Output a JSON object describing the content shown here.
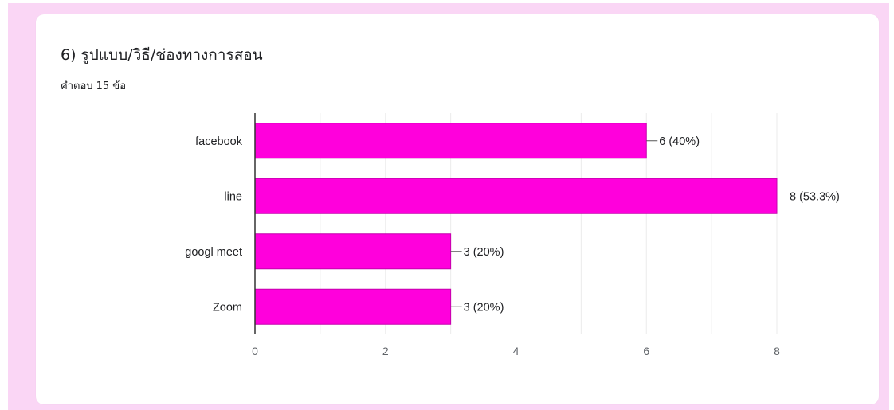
{
  "question": {
    "title": "6) รูปแบบ/วิธี/ช่องทางการสอน",
    "response_count": "คำตอบ 15 ข้อ"
  },
  "colors": {
    "backdrop": "#fad6f5",
    "bar": "#ff00dc",
    "bar_stroke": "#c600ad",
    "grid": "#ebebeb",
    "axis": "#333333"
  },
  "chart_data": {
    "type": "bar",
    "orientation": "horizontal",
    "categories": [
      "facebook",
      "line",
      "googl meet",
      "Zoom"
    ],
    "values": [
      6,
      8,
      3,
      3
    ],
    "data_labels": [
      "6 (40%)",
      "8 (53.3%)",
      "3 (20%)",
      "3 (20%)"
    ],
    "xlim": [
      0,
      8
    ],
    "xticks": [
      0,
      2,
      4,
      6,
      8
    ],
    "grid": true,
    "title": "",
    "xlabel": "",
    "ylabel": ""
  }
}
